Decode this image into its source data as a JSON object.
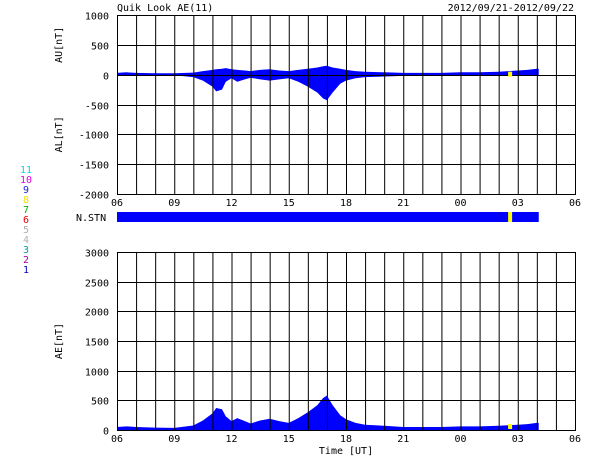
{
  "header": {
    "title": "Quik Look AE(11)",
    "date_range": "2012/09/21-2012/09/22"
  },
  "station_legend": [
    {
      "label": "11",
      "color": "#00d8e8"
    },
    {
      "label": "10",
      "color": "#e000e0"
    },
    {
      "label": "9",
      "color": "#2020e0"
    },
    {
      "label": "8",
      "color": "#f0e000"
    },
    {
      "label": "7",
      "color": "#00b000"
    },
    {
      "label": "6",
      "color": "#e00000"
    },
    {
      "label": "5",
      "color": "#b0b0b0"
    },
    {
      "label": "4",
      "color": "#b0b0b0"
    },
    {
      "label": "3",
      "color": "#00a0a0"
    },
    {
      "label": "2",
      "color": "#a000a0"
    },
    {
      "label": "1",
      "color": "#0000c0"
    }
  ],
  "colors": {
    "fill": "#0000ff",
    "marker": "#ffff00",
    "grid": "#000000"
  },
  "chart_data": [
    {
      "type": "area",
      "name": "AU/AL",
      "ylabel_top": "AU[nT]",
      "ylabel_bottom": "AL[nT]",
      "ylim": [
        -2000,
        1000
      ],
      "yticks": [
        1000,
        500,
        0,
        -500,
        -1000,
        -1500,
        -2000
      ],
      "xticks": [
        "06",
        "09",
        "12",
        "15",
        "18",
        "21",
        "00",
        "03",
        "06"
      ],
      "xlim_hours": [
        6,
        30
      ],
      "grid": true,
      "data_end_hour": 28.1,
      "x": [
        6.0,
        6.5,
        7.0,
        8.0,
        9.0,
        10.0,
        10.5,
        11.0,
        11.2,
        11.5,
        11.7,
        12.0,
        12.3,
        12.7,
        13.0,
        13.5,
        14.0,
        14.5,
        15.0,
        15.5,
        16.0,
        16.5,
        16.8,
        17.0,
        17.3,
        17.7,
        18.0,
        18.5,
        19.0,
        20.0,
        21.0,
        22.0,
        23.0,
        24.0,
        25.0,
        26.0,
        26.5,
        27.0,
        27.5,
        28.0,
        28.1
      ],
      "series": [
        {
          "name": "AU",
          "values": [
            30,
            40,
            30,
            25,
            25,
            35,
            60,
            80,
            90,
            100,
            110,
            90,
            80,
            70,
            60,
            80,
            90,
            70,
            60,
            80,
            100,
            120,
            140,
            150,
            120,
            100,
            80,
            60,
            50,
            40,
            30,
            30,
            30,
            40,
            40,
            50,
            60,
            70,
            80,
            100,
            100
          ]
        },
        {
          "name": "AL",
          "values": [
            -20,
            -20,
            -20,
            -15,
            -10,
            -40,
            -100,
            -200,
            -280,
            -250,
            -120,
            -60,
            -120,
            -80,
            -50,
            -80,
            -100,
            -80,
            -60,
            -120,
            -200,
            -300,
            -400,
            -430,
            -300,
            -150,
            -100,
            -60,
            -40,
            -30,
            -20,
            -20,
            -20,
            -20,
            -20,
            -20,
            -20,
            -20,
            -20,
            -20,
            -20
          ]
        }
      ]
    },
    {
      "type": "bar",
      "name": "N.STN",
      "label": "N.STN",
      "data_end_hour": 28.1,
      "marker_hour": 26.6
    },
    {
      "type": "area",
      "name": "AE",
      "ylabel": "AE[nT]",
      "xlabel": "Time [UT]",
      "ylim": [
        0,
        3000
      ],
      "yticks": [
        3000,
        2500,
        2000,
        1500,
        1000,
        500,
        0
      ],
      "xticks": [
        "06",
        "09",
        "12",
        "15",
        "18",
        "21",
        "00",
        "03",
        "06"
      ],
      "xlim_hours": [
        6,
        30
      ],
      "grid": true,
      "data_end_hour": 28.1,
      "x": [
        6.0,
        6.5,
        7.0,
        8.0,
        9.0,
        10.0,
        10.5,
        11.0,
        11.2,
        11.5,
        11.7,
        12.0,
        12.3,
        12.7,
        13.0,
        13.5,
        14.0,
        14.5,
        15.0,
        15.5,
        16.0,
        16.5,
        16.8,
        17.0,
        17.3,
        17.7,
        18.0,
        18.5,
        19.0,
        20.0,
        21.0,
        22.0,
        23.0,
        24.0,
        25.0,
        26.0,
        26.5,
        27.0,
        27.5,
        28.0,
        28.1
      ],
      "values": [
        50,
        60,
        50,
        40,
        35,
        75,
        160,
        280,
        370,
        350,
        230,
        150,
        200,
        150,
        110,
        160,
        190,
        150,
        120,
        200,
        300,
        420,
        540,
        580,
        420,
        250,
        180,
        120,
        90,
        70,
        50,
        50,
        50,
        60,
        60,
        70,
        80,
        90,
        100,
        120,
        120
      ]
    }
  ]
}
